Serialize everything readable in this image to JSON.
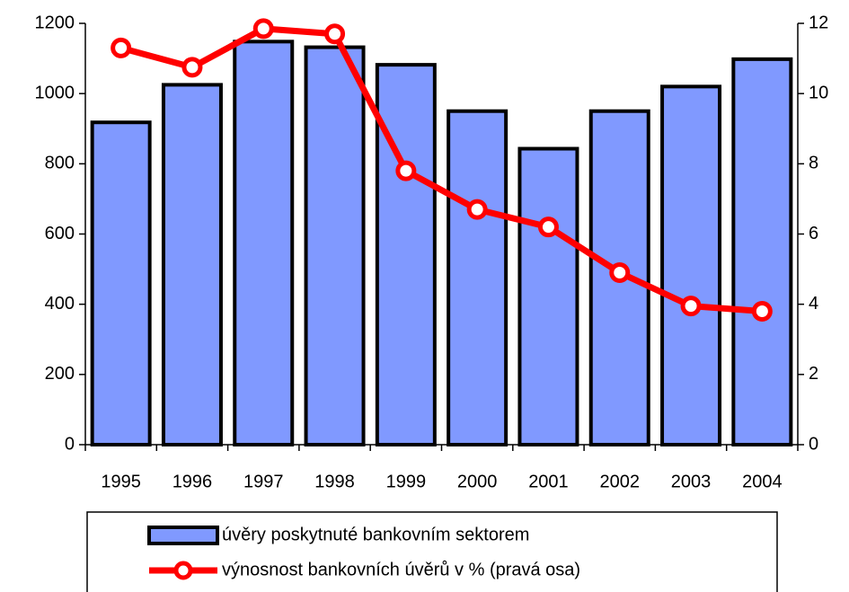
{
  "chart_data": {
    "type": "bar",
    "categories": [
      "1995",
      "1996",
      "1997",
      "1998",
      "1999",
      "2000",
      "2001",
      "2002",
      "2003",
      "2004"
    ],
    "series": [
      {
        "name": "úvěry poskytnuté bankovním sektorem",
        "type": "bar",
        "color": "#8099ff",
        "values": [
          918,
          1025,
          1148,
          1132,
          1082,
          950,
          843,
          950,
          1020,
          1098
        ]
      },
      {
        "name": "výnosnost bankovních úvěrů v % (pravá osa)",
        "type": "line",
        "axis": "y2",
        "color": "#ff0000",
        "values": [
          11.3,
          10.75,
          11.85,
          11.7,
          7.8,
          6.7,
          6.2,
          4.9,
          3.95,
          3.8
        ]
      }
    ],
    "ylim": [
      0,
      1200
    ],
    "yticks": [
      0,
      200,
      400,
      600,
      800,
      1000,
      1200
    ],
    "y2lim": [
      0,
      12
    ],
    "y2ticks": [
      0,
      2,
      4,
      6,
      8,
      10,
      12
    ],
    "grid": false,
    "legend": "bottom"
  }
}
